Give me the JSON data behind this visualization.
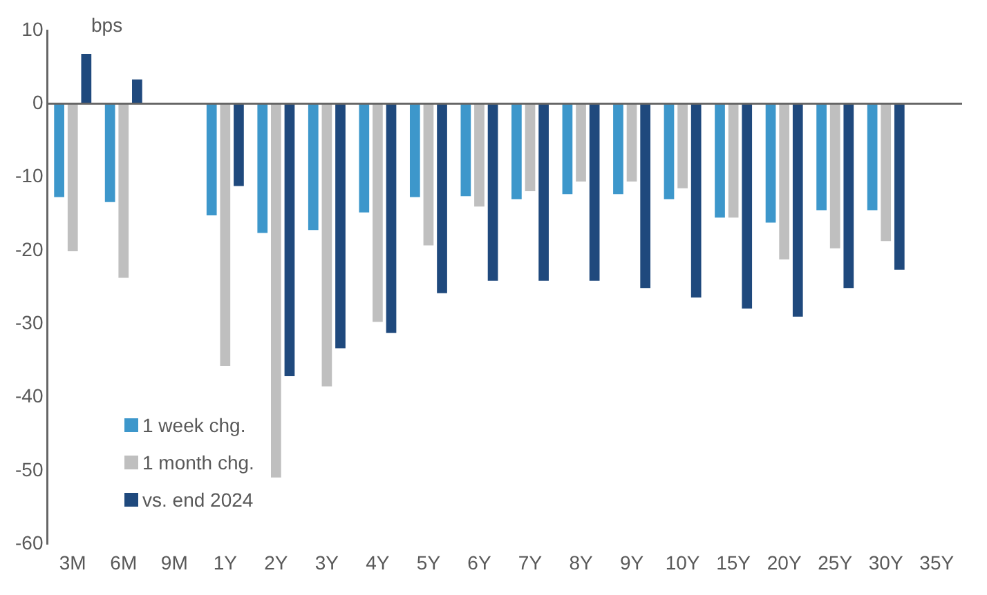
{
  "chart_data": {
    "type": "bar",
    "ylabel": "bps",
    "categories": [
      "3M",
      "6M",
      "9M",
      "1Y",
      "2Y",
      "3Y",
      "4Y",
      "5Y",
      "6Y",
      "7Y",
      "8Y",
      "9Y",
      "10Y",
      "15Y",
      "20Y",
      "25Y",
      "30Y",
      "35Y"
    ],
    "series": [
      {
        "name": "1 week chg.",
        "color": "#3d97cb",
        "values": [
          -12.7,
          -13.4,
          null,
          -15.2,
          -17.6,
          -17.2,
          -14.8,
          -12.7,
          -12.6,
          -13.0,
          -12.3,
          -12.3,
          -13.0,
          -15.5,
          -16.2,
          -14.5,
          -14.5,
          null
        ]
      },
      {
        "name": "1 month chg.",
        "color": "#bfbfbf",
        "values": [
          -20.1,
          -23.7,
          null,
          -35.7,
          -50.9,
          -38.5,
          -29.7,
          -19.3,
          -14.0,
          -11.9,
          -10.6,
          -10.6,
          -11.5,
          -15.5,
          -21.2,
          -19.7,
          -18.7,
          null
        ]
      },
      {
        "name": "vs. end 2024",
        "color": "#1f497d",
        "values": [
          6.8,
          3.3,
          null,
          -11.2,
          -37.1,
          -33.3,
          -31.2,
          -25.8,
          -24.1,
          -24.1,
          -24.1,
          -25.1,
          -26.4,
          -27.9,
          -29.0,
          -25.1,
          -22.6,
          null
        ]
      }
    ],
    "ylim": [
      -60,
      10
    ],
    "yticks": [
      -60,
      -50,
      -40,
      -30,
      -20,
      -10,
      0,
      10
    ],
    "grid": false,
    "legend": "bottom left",
    "ref_lines": [
      {
        "axis": "y",
        "value": 0,
        "color": "#666666"
      }
    ]
  }
}
